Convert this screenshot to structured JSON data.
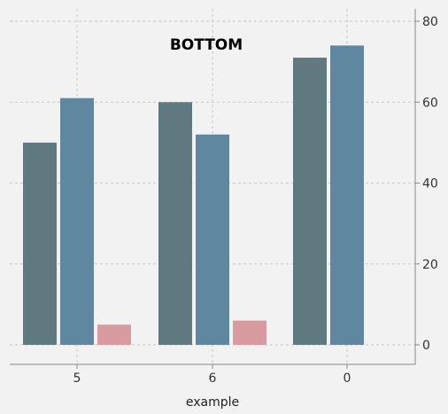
{
  "chart_data": {
    "type": "bar",
    "title": "BOTTOM",
    "xlabel": "example",
    "ylabel": "",
    "categories": [
      "5",
      "6",
      "0"
    ],
    "ylim": [
      -5,
      82
    ],
    "yticks": [
      0,
      20,
      40,
      60,
      80
    ],
    "y_axis_side": "right",
    "grid": true,
    "series": [
      {
        "values": [
          50,
          60,
          71
        ],
        "color": "#607880"
      },
      {
        "values": [
          61,
          52,
          74
        ],
        "color": "#5f87a0"
      },
      {
        "values": [
          5,
          6,
          null
        ],
        "color": "#d89ca0"
      }
    ]
  }
}
